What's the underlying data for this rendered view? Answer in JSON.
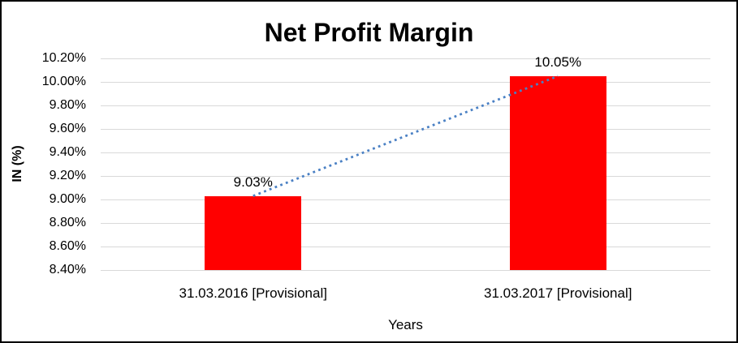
{
  "chart_data": {
    "type": "bar",
    "title": "Net Profit Margin",
    "xlabel": "Years",
    "ylabel": "IN (%)",
    "categories": [
      "31.03.2016 [Provisional]",
      "31.03.2017 [Provisional]"
    ],
    "values": [
      9.03,
      10.05
    ],
    "value_labels": [
      "9.03%",
      "10.05%"
    ],
    "ylim": [
      8.4,
      10.2
    ],
    "ytick_step": 0.2,
    "ytick_labels": [
      "8.40%",
      "8.60%",
      "8.80%",
      "9.00%",
      "9.20%",
      "9.40%",
      "9.60%",
      "9.80%",
      "10.00%",
      "10.20%"
    ],
    "grid": true,
    "legend_position": "none",
    "bar_color": "#FF0000",
    "gridline_color": "#D9D9D9",
    "text_color": "#000000",
    "trendline": {
      "type": "linear",
      "style": "dotted",
      "color": "#4A80C4"
    }
  }
}
